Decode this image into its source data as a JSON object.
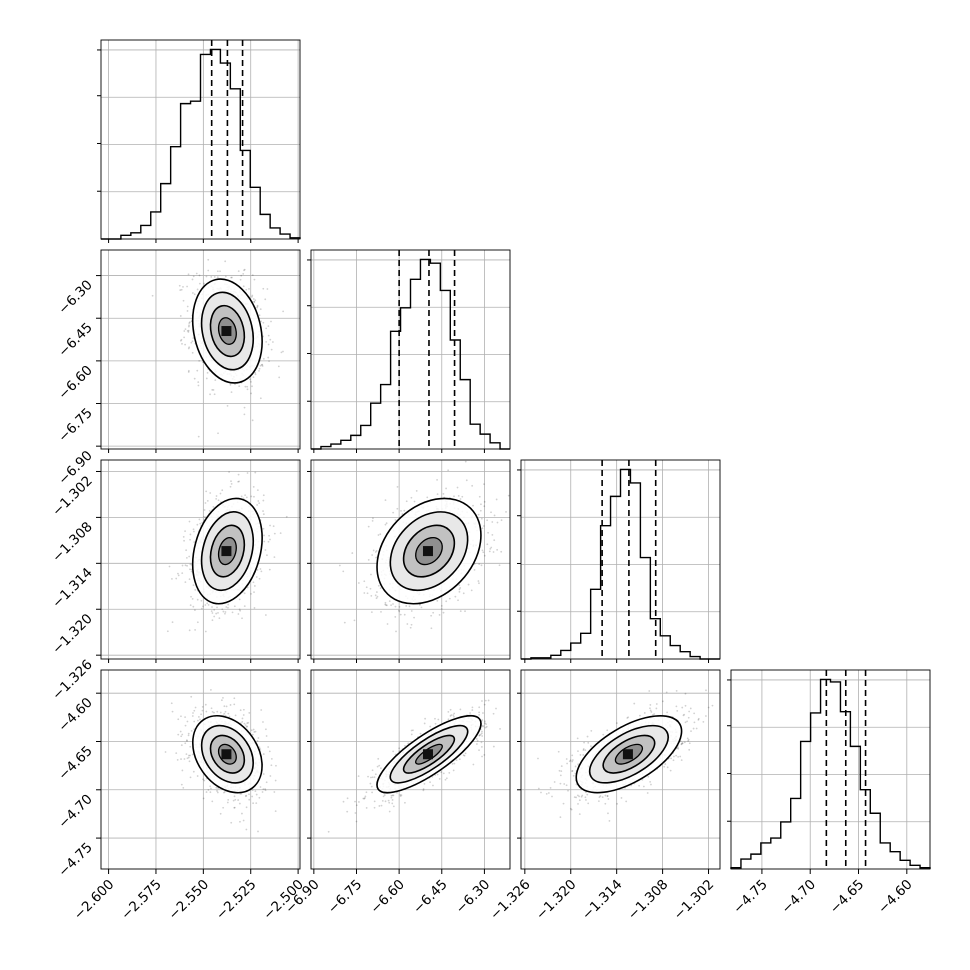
{
  "chart_data": {
    "type": "corner",
    "title": "",
    "grid": true,
    "axes": {
      "p0": {
        "ticks": [
          -2.6,
          -2.575,
          -2.55,
          -2.525,
          -2.5
        ],
        "tick_labels": [
          "−2.600",
          "−2.575",
          "−2.550",
          "−2.525",
          "−2.500"
        ],
        "range": [
          -2.604,
          -2.499
        ]
      },
      "p1": {
        "ticks": [
          -6.9,
          -6.75,
          -6.6,
          -6.45,
          -6.3
        ],
        "tick_labels": [
          "−6.90",
          "−6.75",
          "−6.60",
          "−6.45",
          "−6.30"
        ],
        "range": [
          -6.91,
          -6.21
        ]
      },
      "p2": {
        "ticks": [
          -1.326,
          -1.32,
          -1.314,
          -1.308,
          -1.302
        ],
        "tick_labels": [
          "−1.326",
          "−1.320",
          "−1.314",
          "−1.308",
          "−1.302"
        ],
        "range": [
          -1.3265,
          -1.3005
        ]
      },
      "p3": {
        "ticks": [
          -4.75,
          -4.7,
          -4.65,
          -4.6
        ],
        "tick_labels": [
          "−4.75",
          "−4.70",
          "−4.65",
          "−4.60"
        ],
        "range": [
          -4.782,
          -4.576
        ]
      }
    },
    "quantiles": {
      "p0": [
        -2.5456,
        -2.5373,
        -2.5293
      ],
      "p1": [
        -6.6,
        -6.495,
        -6.405
      ],
      "p2": [
        -1.3159,
        -1.3124,
        -1.3089
      ],
      "p3": [
        -4.6833,
        -4.6632,
        -4.6427
      ]
    },
    "histograms": [
      {
        "param": "p0",
        "edges": [
          -2.604,
          -2.499
        ],
        "counts": [
          0,
          0,
          3,
          5,
          11,
          22,
          45,
          75,
          110,
          112,
          150,
          154,
          143,
          122,
          72,
          42,
          20,
          9,
          4,
          1
        ]
      },
      {
        "param": "p1",
        "edges": [
          -6.91,
          -6.21
        ],
        "counts": [
          0,
          2,
          4,
          7,
          11,
          19,
          37,
          52,
          95,
          114,
          137,
          153,
          150,
          128,
          88,
          56,
          20,
          12,
          5,
          0
        ]
      },
      {
        "param": "p2",
        "edges": [
          -1.3265,
          -1.3005
        ],
        "counts": [
          0,
          1,
          1,
          3,
          7,
          13,
          21,
          57,
          109,
          133,
          155,
          144,
          83,
          33,
          19,
          11,
          6,
          2,
          0,
          0
        ]
      },
      {
        "param": "p3",
        "edges": [
          -4.782,
          -4.576
        ],
        "counts": [
          1,
          8,
          12,
          21,
          25,
          38,
          57,
          103,
          126,
          153,
          151,
          127,
          99,
          64,
          45,
          21,
          14,
          7,
          3,
          1
        ]
      }
    ],
    "pairs": [
      {
        "x": "p0",
        "y": "p1",
        "center": [
          -2.5373,
          -6.495
        ],
        "sd": [
          0.0085,
          0.085
        ],
        "corr": -0.2
      },
      {
        "x": "p0",
        "y": "p2",
        "center": [
          -2.5373,
          -1.3124
        ],
        "sd": [
          0.0085,
          0.0032
        ],
        "corr": 0.25
      },
      {
        "x": "p1",
        "y": "p2",
        "center": [
          -6.495,
          -1.3124
        ],
        "sd": [
          0.085,
          0.0032
        ],
        "corr": 0.3
      },
      {
        "x": "p0",
        "y": "p3",
        "center": [
          -2.5373,
          -4.6632
        ],
        "sd": [
          0.0085,
          0.0185
        ],
        "corr": -0.3
      },
      {
        "x": "p1",
        "y": "p3",
        "center": [
          -6.495,
          -4.6632
        ],
        "sd": [
          0.085,
          0.0185
        ],
        "corr": 0.8
      },
      {
        "x": "p2",
        "y": "p3",
        "center": [
          -1.3124,
          -4.6632
        ],
        "sd": [
          0.0032,
          0.0185
        ],
        "corr": 0.6
      }
    ],
    "style": {
      "line": "#000000",
      "grid": "#b0b0b0",
      "scatter": "#000000",
      "density_dark": "#404040"
    }
  }
}
